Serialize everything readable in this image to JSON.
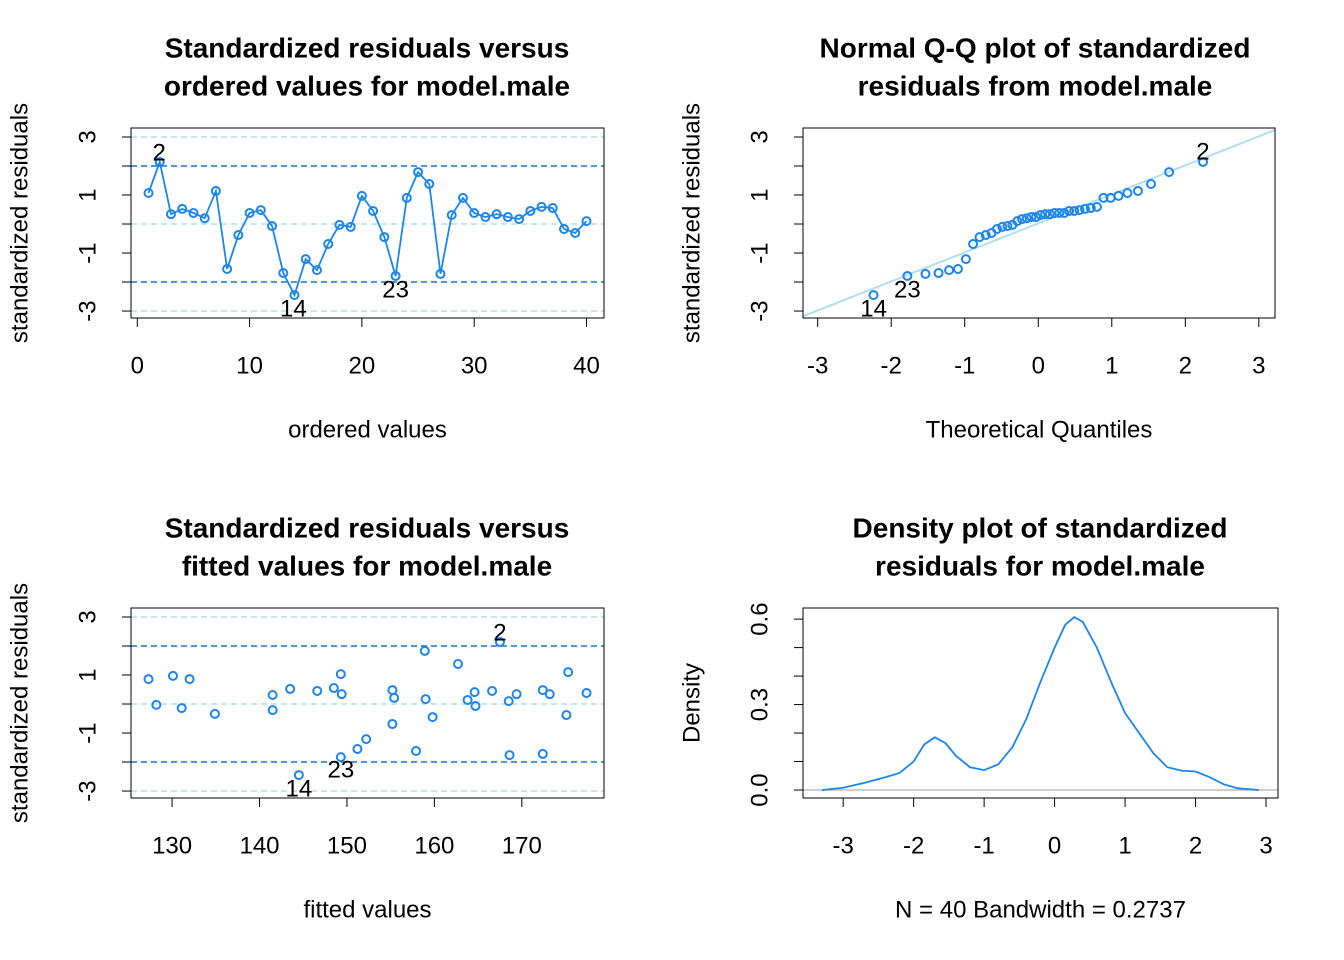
{
  "chart_data": [
    {
      "type": "line",
      "title": [
        "Standardized residuals versus",
        "ordered values for model.male"
      ],
      "xlabel": "ordered values",
      "ylabel": "standardized residuals",
      "x": [
        1,
        2,
        3,
        4,
        5,
        6,
        7,
        8,
        9,
        10,
        11,
        12,
        13,
        14,
        15,
        16,
        17,
        18,
        19,
        20,
        21,
        22,
        23,
        24,
        25,
        26,
        27,
        28,
        29,
        30,
        31,
        32,
        33,
        34,
        35,
        36,
        37,
        38,
        39,
        40
      ],
      "values": [
        1.07,
        2.14,
        0.34,
        0.52,
        0.38,
        0.2,
        1.14,
        -1.55,
        -0.38,
        0.38,
        0.48,
        -0.07,
        -1.69,
        -2.45,
        -1.21,
        -1.59,
        -0.69,
        -0.03,
        -0.1,
        0.97,
        0.45,
        -0.45,
        -1.79,
        0.9,
        1.79,
        1.38,
        -1.72,
        0.31,
        0.9,
        0.38,
        0.24,
        0.34,
        0.24,
        0.17,
        0.45,
        0.59,
        0.55,
        -0.17,
        -0.31,
        0.1
      ],
      "color": "#1C86EE",
      "markers": true,
      "xlim": [
        -0.56,
        41.56
      ],
      "ylim": [
        -3.24,
        3.31
      ],
      "xticks": [
        0,
        10,
        20,
        30,
        40
      ],
      "yticks": [
        -3,
        -1,
        1,
        3
      ],
      "yticks_minor": [
        -2,
        0,
        2
      ],
      "hlines": [
        {
          "value": 3,
          "color": "#B2DFEE",
          "dashed": true
        },
        {
          "value": 2,
          "color": "#1874CD",
          "dashed": true
        },
        {
          "value": 0,
          "color": "#B2DFEE",
          "dashed": true
        },
        {
          "value": -2,
          "color": "#1874CD",
          "dashed": true
        },
        {
          "value": -3,
          "color": "#B2DFEE",
          "dashed": true
        }
      ],
      "annotations": [
        {
          "text": "2",
          "x": 1.95,
          "y": 2.45
        },
        {
          "text": "14",
          "x": 13.9,
          "y": -2.93
        },
        {
          "text": "23",
          "x": 23,
          "y": -2.28
        }
      ]
    },
    {
      "type": "scatter",
      "title": [
        "Normal Q-Q plot of standardized",
        "residuals from model.male"
      ],
      "xlabel": "Theoretical Quantiles",
      "ylabel": "standardized residuals",
      "x": [
        -2.241,
        -1.78,
        -1.534,
        -1.356,
        -1.213,
        -1.092,
        -0.984,
        -0.887,
        -0.798,
        -0.714,
        -0.636,
        -0.561,
        -0.489,
        -0.419,
        -0.352,
        -0.286,
        -0.221,
        -0.157,
        -0.094,
        -0.031,
        0.031,
        0.094,
        0.157,
        0.221,
        0.286,
        0.352,
        0.419,
        0.489,
        0.561,
        0.636,
        0.714,
        0.798,
        0.887,
        0.984,
        1.092,
        1.213,
        1.356,
        1.534,
        1.78,
        2.241
      ],
      "values": [
        -2.45,
        -1.79,
        -1.72,
        -1.69,
        -1.59,
        -1.55,
        -1.21,
        -0.69,
        -0.45,
        -0.38,
        -0.31,
        -0.17,
        -0.1,
        -0.07,
        -0.03,
        0.1,
        0.17,
        0.2,
        0.24,
        0.24,
        0.31,
        0.34,
        0.34,
        0.38,
        0.38,
        0.38,
        0.45,
        0.45,
        0.48,
        0.52,
        0.55,
        0.59,
        0.9,
        0.9,
        0.97,
        1.07,
        1.14,
        1.38,
        1.79,
        2.14
      ],
      "color": "#1C86EE",
      "qqline": {
        "intercept": 0.02,
        "slope": 1.0,
        "color": "#B2DFEE"
      },
      "xlim": [
        -3.2,
        3.22
      ],
      "ylim": [
        -3.24,
        3.31
      ],
      "xticks": [
        -3,
        -2,
        -1,
        0,
        1,
        2,
        3
      ],
      "yticks": [
        -3,
        -1,
        1,
        3
      ],
      "yticks_minor": [
        -2,
        0,
        2
      ],
      "annotations": [
        {
          "text": "2",
          "x": 2.24,
          "y": 2.48
        },
        {
          "text": "14",
          "x": -2.24,
          "y": -2.93
        },
        {
          "text": "23",
          "x": -1.78,
          "y": -2.28
        }
      ]
    },
    {
      "type": "scatter",
      "title": [
        "Standardized residuals versus",
        "fitted values for model.male"
      ],
      "xlabel": "fitted values",
      "ylabel": "standardized residuals",
      "x": [
        127.3,
        128.2,
        130.1,
        131.1,
        132.0,
        134.9,
        141.5,
        141.5,
        143.5,
        144.5,
        146.6,
        148.5,
        149.3,
        149.3,
        149.4,
        151.2,
        152.2,
        155.2,
        155.2,
        155.4,
        157.9,
        158.9,
        159.0,
        159.8,
        162.7,
        163.8,
        164.6,
        164.7,
        166.6,
        167.5,
        168.5,
        168.6,
        169.4,
        172.4,
        172.4,
        173.2,
        175.1,
        175.3,
        177.4
      ],
      "values": [
        0.86,
        -0.03,
        0.97,
        -0.14,
        0.86,
        -0.34,
        0.31,
        -0.21,
        0.52,
        -2.45,
        0.45,
        0.55,
        -1.83,
        1.03,
        0.34,
        -1.55,
        -1.21,
        0.48,
        -0.69,
        0.21,
        -1.62,
        1.83,
        0.17,
        -0.45,
        1.38,
        0.14,
        0.41,
        -0.07,
        0.45,
        2.14,
        0.1,
        -1.76,
        0.34,
        -1.72,
        0.48,
        0.34,
        -0.38,
        1.1,
        0.38
      ],
      "color": "#1C86EE",
      "xlim": [
        125.3,
        179.4
      ],
      "ylim": [
        -3.24,
        3.31
      ],
      "xticks": [
        130,
        140,
        150,
        160,
        170
      ],
      "yticks": [
        -3,
        -1,
        1,
        3
      ],
      "yticks_minor": [
        -2,
        0,
        2
      ],
      "hlines": [
        {
          "value": 3,
          "color": "#B2DFEE",
          "dashed": true
        },
        {
          "value": 2,
          "color": "#1874CD",
          "dashed": true
        },
        {
          "value": 0,
          "color": "#B2DFEE",
          "dashed": true
        },
        {
          "value": -2,
          "color": "#1874CD",
          "dashed": true
        },
        {
          "value": -3,
          "color": "#B2DFEE",
          "dashed": true
        }
      ],
      "annotations": [
        {
          "text": "2",
          "x": 167.5,
          "y": 2.45
        },
        {
          "text": "14",
          "x": 144.5,
          "y": -2.93
        },
        {
          "text": "23",
          "x": 149.3,
          "y": -2.28
        }
      ]
    },
    {
      "type": "line",
      "title": [
        "Density plot of standardized",
        "residuals for model.male"
      ],
      "xlabel": "N = 40   Bandwidth = 0.2737",
      "ylabel": "Density",
      "x": [
        -3.3,
        -3.0,
        -2.7,
        -2.4,
        -2.2,
        -2.0,
        -1.85,
        -1.7,
        -1.55,
        -1.4,
        -1.2,
        -1.0,
        -0.8,
        -0.6,
        -0.4,
        -0.2,
        0.0,
        0.15,
        0.28,
        0.4,
        0.6,
        0.8,
        1.0,
        1.2,
        1.4,
        1.6,
        1.8,
        2.0,
        2.2,
        2.4,
        2.6,
        2.9
      ],
      "values": [
        0.0,
        0.008,
        0.025,
        0.045,
        0.06,
        0.1,
        0.16,
        0.185,
        0.165,
        0.12,
        0.08,
        0.07,
        0.09,
        0.15,
        0.25,
        0.38,
        0.5,
        0.58,
        0.607,
        0.59,
        0.5,
        0.38,
        0.27,
        0.2,
        0.13,
        0.08,
        0.068,
        0.065,
        0.045,
        0.02,
        0.006,
        0.0
      ],
      "color": "#1C86EE",
      "markers": false,
      "xlim": [
        -3.57,
        3.17
      ],
      "ylim": [
        -0.028,
        0.639
      ],
      "xticks": [
        -3,
        -2,
        -1,
        0,
        1,
        2,
        3
      ],
      "yticks": [
        {
          "value": 0,
          "label": "0.0"
        },
        {
          "value": 0.3,
          "label": "0.3"
        },
        {
          "value": 0.6,
          "label": "0.6"
        }
      ],
      "yticks_minor": [
        0.1,
        0.2,
        0.4,
        0.5
      ],
      "hlines": [
        {
          "value": 0,
          "color": "#BEBEBE",
          "dashed": false
        }
      ]
    }
  ]
}
